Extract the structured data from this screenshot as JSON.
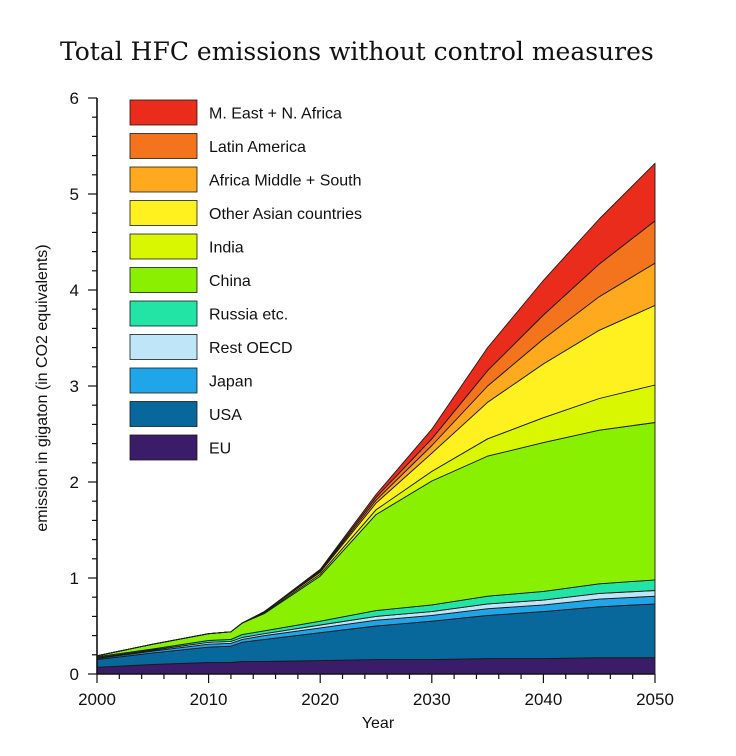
{
  "chart_data": {
    "type": "area",
    "stacked": true,
    "title": "Total HFC emissions without control measures",
    "xlabel": "Year",
    "ylabel": "emission in gigaton (in CO2 equivalents)",
    "xlim": [
      2000,
      2050
    ],
    "ylim": [
      0,
      6
    ],
    "x_ticks": [
      2000,
      2010,
      2020,
      2030,
      2040,
      2050
    ],
    "y_ticks": [
      0,
      1,
      2,
      3,
      4,
      5,
      6
    ],
    "grid": false,
    "legend_position": "top-left",
    "x": [
      2000,
      2005,
      2010,
      2012,
      2013,
      2015,
      2020,
      2025,
      2030,
      2035,
      2040,
      2045,
      2050
    ],
    "series": [
      {
        "name": "EU",
        "color": "#3b1c68",
        "values": [
          0.07,
          0.1,
          0.12,
          0.12,
          0.13,
          0.13,
          0.14,
          0.15,
          0.15,
          0.16,
          0.16,
          0.17,
          0.17
        ]
      },
      {
        "name": "USA",
        "color": "#08689c",
        "values": [
          0.08,
          0.12,
          0.16,
          0.17,
          0.2,
          0.23,
          0.29,
          0.35,
          0.4,
          0.45,
          0.49,
          0.53,
          0.56
        ]
      },
      {
        "name": "Japan",
        "color": "#1fa6e8",
        "values": [
          0.01,
          0.02,
          0.03,
          0.03,
          0.03,
          0.04,
          0.05,
          0.06,
          0.06,
          0.07,
          0.07,
          0.08,
          0.08
        ]
      },
      {
        "name": "Rest OECD",
        "color": "#bfe6f8",
        "values": [
          0.01,
          0.01,
          0.02,
          0.02,
          0.02,
          0.02,
          0.03,
          0.04,
          0.04,
          0.05,
          0.05,
          0.06,
          0.06
        ]
      },
      {
        "name": "Russia etc.",
        "color": "#22e5a5",
        "values": [
          0.01,
          0.01,
          0.02,
          0.02,
          0.03,
          0.03,
          0.04,
          0.06,
          0.07,
          0.08,
          0.09,
          0.1,
          0.11
        ]
      },
      {
        "name": "China",
        "color": "#88f000",
        "values": [
          0.01,
          0.05,
          0.07,
          0.08,
          0.12,
          0.18,
          0.47,
          1.0,
          1.29,
          1.46,
          1.55,
          1.6,
          1.64
        ]
      },
      {
        "name": "India",
        "color": "#d8f700",
        "values": [
          0.0,
          0.0,
          0.0,
          0.0,
          0.0,
          0.01,
          0.02,
          0.05,
          0.1,
          0.18,
          0.26,
          0.33,
          0.39
        ]
      },
      {
        "name": "Other Asian countries",
        "color": "#fff020",
        "values": [
          0.0,
          0.0,
          0.0,
          0.0,
          0.0,
          0.01,
          0.02,
          0.07,
          0.19,
          0.38,
          0.56,
          0.71,
          0.83
        ]
      },
      {
        "name": "Africa Middle + South",
        "color": "#ffa91e",
        "values": [
          0.0,
          0.0,
          0.0,
          0.0,
          0.0,
          0.0,
          0.01,
          0.03,
          0.08,
          0.17,
          0.26,
          0.35,
          0.44
        ]
      },
      {
        "name": "Latin America",
        "color": "#f4741e",
        "values": [
          0.0,
          0.0,
          0.0,
          0.0,
          0.0,
          0.0,
          0.01,
          0.03,
          0.07,
          0.16,
          0.25,
          0.34,
          0.44
        ]
      },
      {
        "name": "M. East + N. Africa",
        "color": "#ea2c1c",
        "values": [
          0.0,
          0.0,
          0.0,
          0.0,
          0.0,
          0.0,
          0.01,
          0.03,
          0.1,
          0.24,
          0.36,
          0.47,
          0.6
        ]
      }
    ]
  }
}
